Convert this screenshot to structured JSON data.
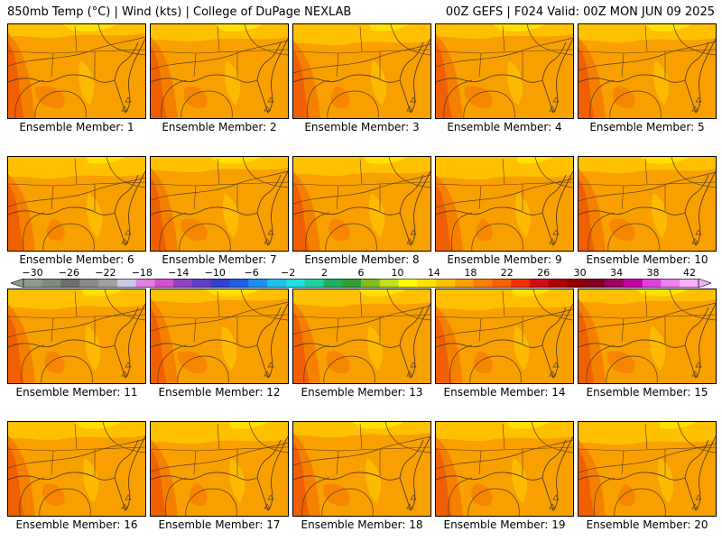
{
  "header": {
    "title_left": "850mb Temp (°C) | Wind (kts) | College of DuPage NEXLAB",
    "title_right": "00Z GEFS | F024 Valid: 00Z MON JUN 09 2025"
  },
  "members": [
    {
      "label": "Ensemble Member: 1"
    },
    {
      "label": "Ensemble Member: 2"
    },
    {
      "label": "Ensemble Member: 3"
    },
    {
      "label": "Ensemble Member: 4"
    },
    {
      "label": "Ensemble Member: 5"
    },
    {
      "label": "Ensemble Member: 6"
    },
    {
      "label": "Ensemble Member: 7"
    },
    {
      "label": "Ensemble Member: 8"
    },
    {
      "label": "Ensemble Member: 9"
    },
    {
      "label": "Ensemble Member: 10"
    },
    {
      "label": "Ensemble Member: 11"
    },
    {
      "label": "Ensemble Member: 12"
    },
    {
      "label": "Ensemble Member: 13"
    },
    {
      "label": "Ensemble Member: 14"
    },
    {
      "label": "Ensemble Member: 15"
    },
    {
      "label": "Ensemble Member: 16"
    },
    {
      "label": "Ensemble Member: 17"
    },
    {
      "label": "Ensemble Member: 18"
    },
    {
      "label": "Ensemble Member: 19"
    },
    {
      "label": "Ensemble Member: 20"
    }
  ],
  "colorbar": {
    "tick_labels": [
      "−30",
      "−26",
      "−22",
      "−18",
      "−14",
      "−10",
      "−6",
      "−2",
      "2",
      "6",
      "10",
      "14",
      "18",
      "22",
      "26",
      "30",
      "34",
      "38",
      "42"
    ],
    "colors": [
      "#8e9c8e",
      "#7f8a7f",
      "#6b706b",
      "#8a8a8a",
      "#a0a0a0",
      "#c8c8e0",
      "#e080e0",
      "#d050d0",
      "#9040c0",
      "#6040c8",
      "#3040d0",
      "#2060e8",
      "#2090f0",
      "#20c0f0",
      "#20e0e0",
      "#20d0a0",
      "#20b060",
      "#30a030",
      "#80c020",
      "#c0e020",
      "#ffff00",
      "#ffe000",
      "#ffc000",
      "#ffa000",
      "#ff8000",
      "#ff6000",
      "#f03000",
      "#d01010",
      "#b00000",
      "#900000",
      "#800020",
      "#a00060",
      "#c000a0",
      "#e040e0",
      "#f080f0",
      "#f8b0f8"
    ]
  },
  "map_colors": {
    "base": "#f7a000",
    "light": "#ffc000",
    "yellow": "#ffe000",
    "dark": "#f58000",
    "red": "#f06000",
    "line": "#5a3a20"
  }
}
